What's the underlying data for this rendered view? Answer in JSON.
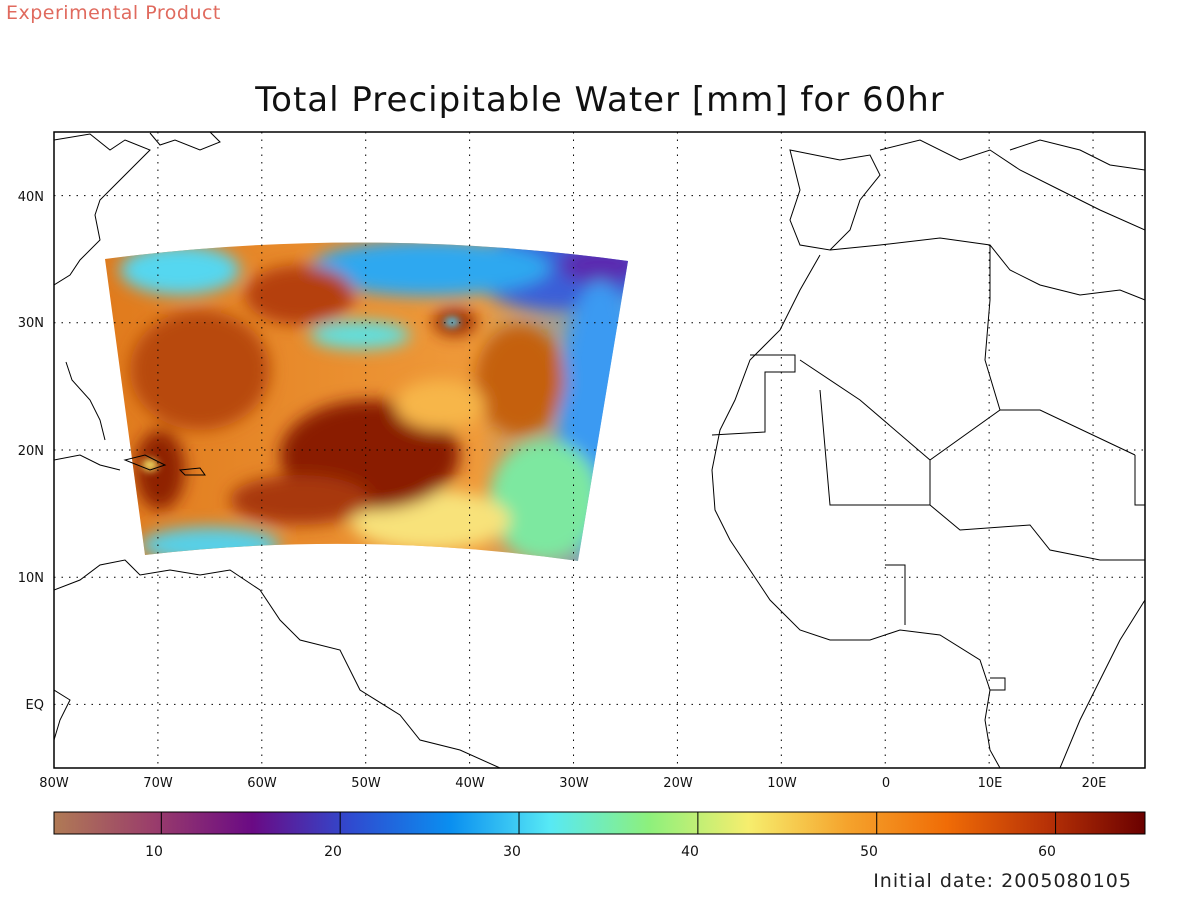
{
  "header": {
    "experimental_label": "Experimental Product"
  },
  "map": {
    "title": "Total Precipitable Water [mm] for 60hr",
    "lat_labels": [
      "40N",
      "30N",
      "20N",
      "10N",
      "EQ"
    ],
    "lon_labels": [
      "80W",
      "70W",
      "60W",
      "50W",
      "40W",
      "30W",
      "20W",
      "10W",
      "0",
      "10E",
      "20E"
    ],
    "extent": {
      "lon_min": -80,
      "lon_max": 25,
      "lat_min": -5,
      "lat_max": 45
    }
  },
  "colorbar": {
    "ticks": [
      "10",
      "20",
      "30",
      "40",
      "50",
      "60"
    ],
    "range": [
      4,
      65
    ],
    "colors": [
      "#b07a55",
      "#9a3d6b",
      "#6a0a84",
      "#2f4bd0",
      "#0a8ff0",
      "#57e9f5",
      "#8df07c",
      "#f6ee6e",
      "#f5a32c",
      "#f06c06",
      "#b83206",
      "#6a0000"
    ]
  },
  "footer": {
    "initial_date": "Initial date: 2005080105"
  }
}
